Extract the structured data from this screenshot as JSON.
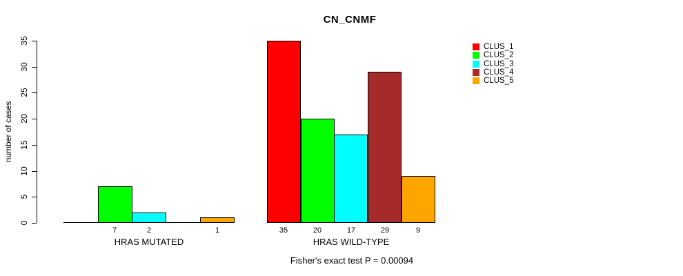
{
  "chart_data": {
    "type": "bar",
    "title": "CN_CNMF",
    "xlabel": "",
    "ylabel": "number of cases",
    "annotation": "Fisher's exact test P = 0.00094",
    "categories": [
      "HRAS MUTATED",
      "HRAS WILD-TYPE"
    ],
    "series": [
      {
        "name": "CLUS_1",
        "color": "#FF0000",
        "values": [
          0,
          35
        ]
      },
      {
        "name": "CLUS_2",
        "color": "#00FF00",
        "values": [
          7,
          20
        ]
      },
      {
        "name": "CLUS_3",
        "color": "#00FFFF",
        "values": [
          2,
          17
        ]
      },
      {
        "name": "CLUS_4",
        "color": "#A52A2A",
        "values": [
          0,
          29
        ]
      },
      {
        "name": "CLUS_5",
        "color": "#FFA500",
        "values": [
          1,
          9
        ]
      }
    ],
    "bar_value_labels_shown": true,
    "show_zero_labels": false,
    "ylim": [
      0,
      35
    ],
    "yticks": [
      0,
      5,
      10,
      15,
      20,
      25,
      30,
      35
    ],
    "grid": false,
    "legend_position": "right",
    "legend": [
      "CLUS_1",
      "CLUS_2",
      "CLUS_3",
      "CLUS_4",
      "CLUS_5"
    ],
    "colors": {
      "CLUS_1": "#FF0000",
      "CLUS_2": "#00FF00",
      "CLUS_3": "#00FFFF",
      "CLUS_4": "#A52A2A",
      "CLUS_5": "#FFA500"
    },
    "text_color": "#000000",
    "background_color": "#FFFFFF"
  }
}
